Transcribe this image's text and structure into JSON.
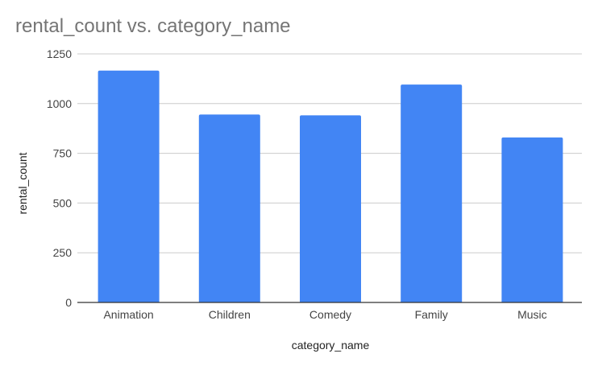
{
  "chart_data": {
    "type": "bar",
    "title": "rental_count vs. category_name",
    "xlabel": "category_name",
    "ylabel": "rental_count",
    "categories": [
      "Animation",
      "Children",
      "Comedy",
      "Family",
      "Music"
    ],
    "values": [
      1166,
      945,
      941,
      1096,
      830
    ],
    "ylim": [
      0,
      1250
    ],
    "yticks": [
      "0",
      "250",
      "500",
      "750",
      "1000",
      "1250"
    ],
    "grid": true,
    "legend": "none",
    "bar_color": "#4285F4",
    "gridline_color": "#CCCCCC",
    "baseline_color": "#333333"
  }
}
